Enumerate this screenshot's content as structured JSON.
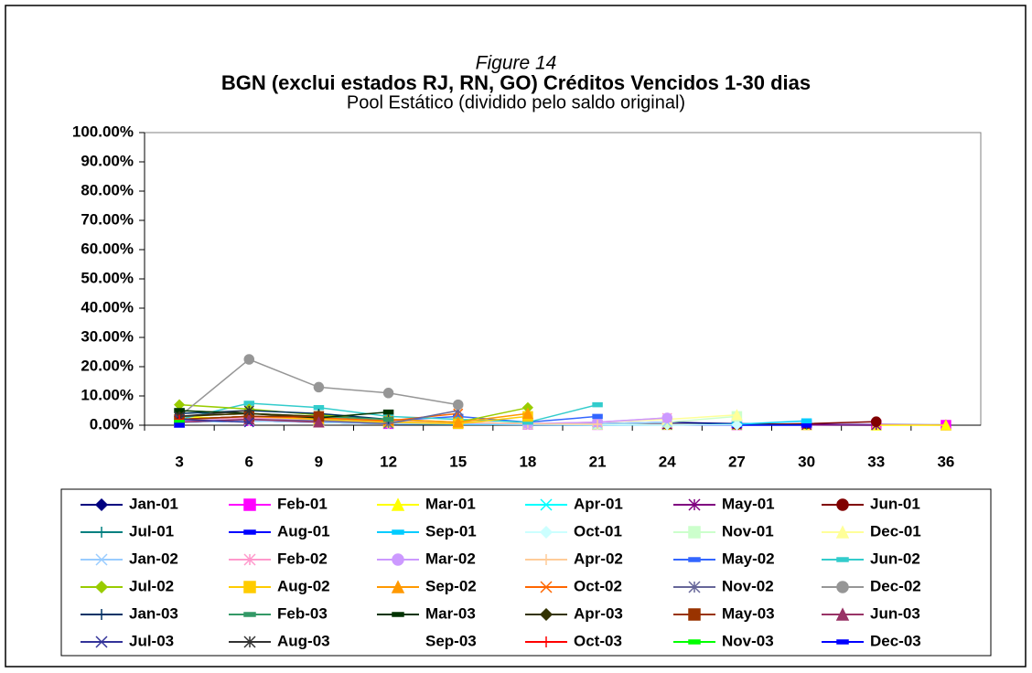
{
  "chart_data": {
    "type": "line",
    "figure_label": "Figure 14",
    "title": "BGN (exclui estados RJ, RN, GO) Créditos Vencidos 1-30 dias",
    "subtitle": "Pool Estático (dividido pelo saldo original)",
    "categories": [
      3,
      6,
      9,
      12,
      15,
      18,
      21,
      24,
      27,
      30,
      33,
      36
    ],
    "ylim": [
      0,
      100
    ],
    "yticks": [
      {
        "value": 0,
        "label": "0.00%"
      },
      {
        "value": 10,
        "label": "10.00%"
      },
      {
        "value": 20,
        "label": "20.00%"
      },
      {
        "value": 30,
        "label": "30.00%"
      },
      {
        "value": 40,
        "label": "40.00%"
      },
      {
        "value": 50,
        "label": "50.00%"
      },
      {
        "value": 60,
        "label": "60.00%"
      },
      {
        "value": 70,
        "label": "70.00%"
      },
      {
        "value": 80,
        "label": "80.00%"
      },
      {
        "value": 90,
        "label": "90.00%"
      },
      {
        "value": 100,
        "label": "100.00%"
      }
    ],
    "series": [
      {
        "name": "Jan-01",
        "color": "#000080",
        "values": [
          2,
          3,
          2,
          1.5,
          1,
          0.5,
          0.5,
          1,
          0.5,
          0.3,
          0.2,
          0.1
        ]
      },
      {
        "name": "Feb-01",
        "color": "#FF00FF",
        "values": [
          1,
          1.5,
          1,
          0.5,
          0.5,
          0.3,
          0.2,
          0.2,
          0.1,
          0.1,
          0.1,
          0
        ]
      },
      {
        "name": "Mar-01",
        "color": "#FFFF00",
        "values": [
          3,
          2,
          1.5,
          1,
          0.8,
          0.5,
          0.3,
          0.2,
          0.2,
          0.1,
          0,
          0
        ]
      },
      {
        "name": "Apr-01",
        "color": "#00FFFF",
        "values": [
          1,
          1.5,
          1,
          0.5,
          0.5,
          0.3,
          0.2,
          0.1,
          0.1,
          0.1,
          0,
          null
        ]
      },
      {
        "name": "May-01",
        "color": "#800080",
        "values": [
          2,
          2.5,
          1.5,
          1,
          0.5,
          0.5,
          0.3,
          0.2,
          0.2,
          0.1,
          0,
          null
        ]
      },
      {
        "name": "Jun-01",
        "color": "#800000",
        "values": [
          1.5,
          2,
          1.5,
          1,
          0.8,
          0.5,
          0.4,
          0.3,
          0.2,
          0.5,
          1.2,
          null
        ]
      },
      {
        "name": "Jul-01",
        "color": "#008080",
        "values": [
          2,
          3,
          2,
          1,
          0.5,
          0.3,
          0.2,
          0.1,
          0.1,
          0.1,
          null,
          null
        ]
      },
      {
        "name": "Aug-01",
        "color": "#0000FF",
        "values": [
          1,
          1.5,
          1,
          0.5,
          0.3,
          0.2,
          0.1,
          0.1,
          0,
          0,
          null,
          null
        ]
      },
      {
        "name": "Sep-01",
        "color": "#00CCFF",
        "values": [
          1,
          1.5,
          1,
          0.5,
          0.3,
          0.2,
          0.1,
          0.1,
          0.3,
          1.5,
          null,
          null
        ]
      },
      {
        "name": "Oct-01",
        "color": "#CCFFFF",
        "values": [
          1,
          1.5,
          1,
          0.5,
          0.5,
          0.3,
          0.2,
          0.1,
          0.1,
          null,
          null,
          null
        ]
      },
      {
        "name": "Nov-01",
        "color": "#CCFFCC",
        "values": [
          1.5,
          2,
          1.5,
          1,
          0.5,
          0.5,
          0.3,
          1,
          3,
          null,
          null,
          null
        ]
      },
      {
        "name": "Dec-01",
        "color": "#FFFF99",
        "values": [
          2,
          2.5,
          1.5,
          1,
          0.8,
          0.5,
          1,
          2,
          3.5,
          null,
          null,
          null
        ]
      },
      {
        "name": "Jan-02",
        "color": "#99CCFF",
        "values": [
          1,
          1.5,
          1,
          0.5,
          0.5,
          0.3,
          0.5,
          1,
          null,
          null,
          null,
          null
        ]
      },
      {
        "name": "Feb-02",
        "color": "#FF99CC",
        "values": [
          2,
          2.5,
          2,
          1.5,
          1,
          0.5,
          1,
          2.5,
          null,
          null,
          null,
          null
        ]
      },
      {
        "name": "Mar-02",
        "color": "#CC99FF",
        "values": [
          1.5,
          2,
          1.5,
          1,
          0.8,
          0.5,
          1,
          2.5,
          null,
          null,
          null,
          null
        ]
      },
      {
        "name": "Apr-02",
        "color": "#FFCC99",
        "values": [
          2,
          3,
          2,
          1.5,
          1,
          0.5,
          0.3,
          null,
          null,
          null,
          null,
          null
        ]
      },
      {
        "name": "May-02",
        "color": "#3366FF",
        "values": [
          2,
          3,
          2.5,
          1.5,
          3,
          1,
          3,
          null,
          null,
          null,
          null,
          null
        ]
      },
      {
        "name": "Jun-02",
        "color": "#33CCCC",
        "values": [
          2,
          7.5,
          6,
          3,
          2,
          1,
          7,
          null,
          null,
          null,
          null,
          null
        ]
      },
      {
        "name": "Jul-02",
        "color": "#99CC00",
        "values": [
          7,
          5.5,
          3.5,
          2,
          1,
          6,
          null,
          null,
          null,
          null,
          null,
          null
        ]
      },
      {
        "name": "Aug-02",
        "color": "#FFCC00",
        "values": [
          2,
          3,
          2,
          1,
          0.5,
          3,
          null,
          null,
          null,
          null,
          null,
          null
        ]
      },
      {
        "name": "Sep-02",
        "color": "#FF9900",
        "values": [
          3,
          4,
          3,
          2,
          1,
          4,
          null,
          null,
          null,
          null,
          null,
          null
        ]
      },
      {
        "name": "Oct-02",
        "color": "#FF6600",
        "values": [
          2,
          3,
          2.5,
          1.5,
          4,
          null,
          null,
          null,
          null,
          null,
          null,
          null
        ]
      },
      {
        "name": "Nov-02",
        "color": "#666699",
        "values": [
          1,
          2,
          1.5,
          0.5,
          5,
          null,
          null,
          null,
          null,
          null,
          null,
          null
        ]
      },
      {
        "name": "Dec-02",
        "color": "#969696",
        "values": [
          3,
          22.5,
          13,
          11,
          7,
          null,
          null,
          null,
          null,
          null,
          null,
          null
        ]
      },
      {
        "name": "Jan-03",
        "color": "#003366",
        "values": [
          4,
          5,
          4,
          2,
          null,
          null,
          null,
          null,
          null,
          null,
          null,
          null
        ]
      },
      {
        "name": "Feb-03",
        "color": "#339966",
        "values": [
          5,
          4,
          3,
          2,
          null,
          null,
          null,
          null,
          null,
          null,
          null,
          null
        ]
      },
      {
        "name": "Mar-03",
        "color": "#003300",
        "values": [
          5,
          4,
          2.5,
          4.5,
          null,
          null,
          null,
          null,
          null,
          null,
          null,
          null
        ]
      },
      {
        "name": "Apr-03",
        "color": "#333300",
        "values": [
          3,
          4,
          3,
          null,
          null,
          null,
          null,
          null,
          null,
          null,
          null,
          null
        ]
      },
      {
        "name": "May-03",
        "color": "#993300",
        "values": [
          2,
          3,
          3,
          null,
          null,
          null,
          null,
          null,
          null,
          null,
          null,
          null
        ]
      },
      {
        "name": "Jun-03",
        "color": "#993366",
        "values": [
          1,
          2,
          1,
          null,
          null,
          null,
          null,
          null,
          null,
          null,
          null,
          null
        ]
      },
      {
        "name": "Jul-03",
        "color": "#333399",
        "values": [
          2,
          1,
          null,
          null,
          null,
          null,
          null,
          null,
          null,
          null,
          null,
          null
        ]
      },
      {
        "name": "Aug-03",
        "color": "#333333",
        "values": [
          3,
          5,
          null,
          null,
          null,
          null,
          null,
          null,
          null,
          null,
          null,
          null
        ]
      },
      {
        "name": "Sep-03",
        "values": [
          null,
          null,
          null,
          null,
          null,
          null,
          null,
          null,
          null,
          null,
          null,
          null
        ]
      },
      {
        "name": "Oct-03",
        "color": "#FF0000",
        "values": [
          2,
          null,
          null,
          null,
          null,
          null,
          null,
          null,
          null,
          null,
          null,
          null
        ]
      },
      {
        "name": "Nov-03",
        "color": "#00FF00",
        "values": [
          1,
          null,
          null,
          null,
          null,
          null,
          null,
          null,
          null,
          null,
          null,
          null
        ]
      },
      {
        "name": "Dec-03",
        "color": "#0000FF",
        "values": [
          0,
          null,
          null,
          null,
          null,
          null,
          null,
          null,
          null,
          null,
          null,
          null
        ]
      }
    ]
  }
}
